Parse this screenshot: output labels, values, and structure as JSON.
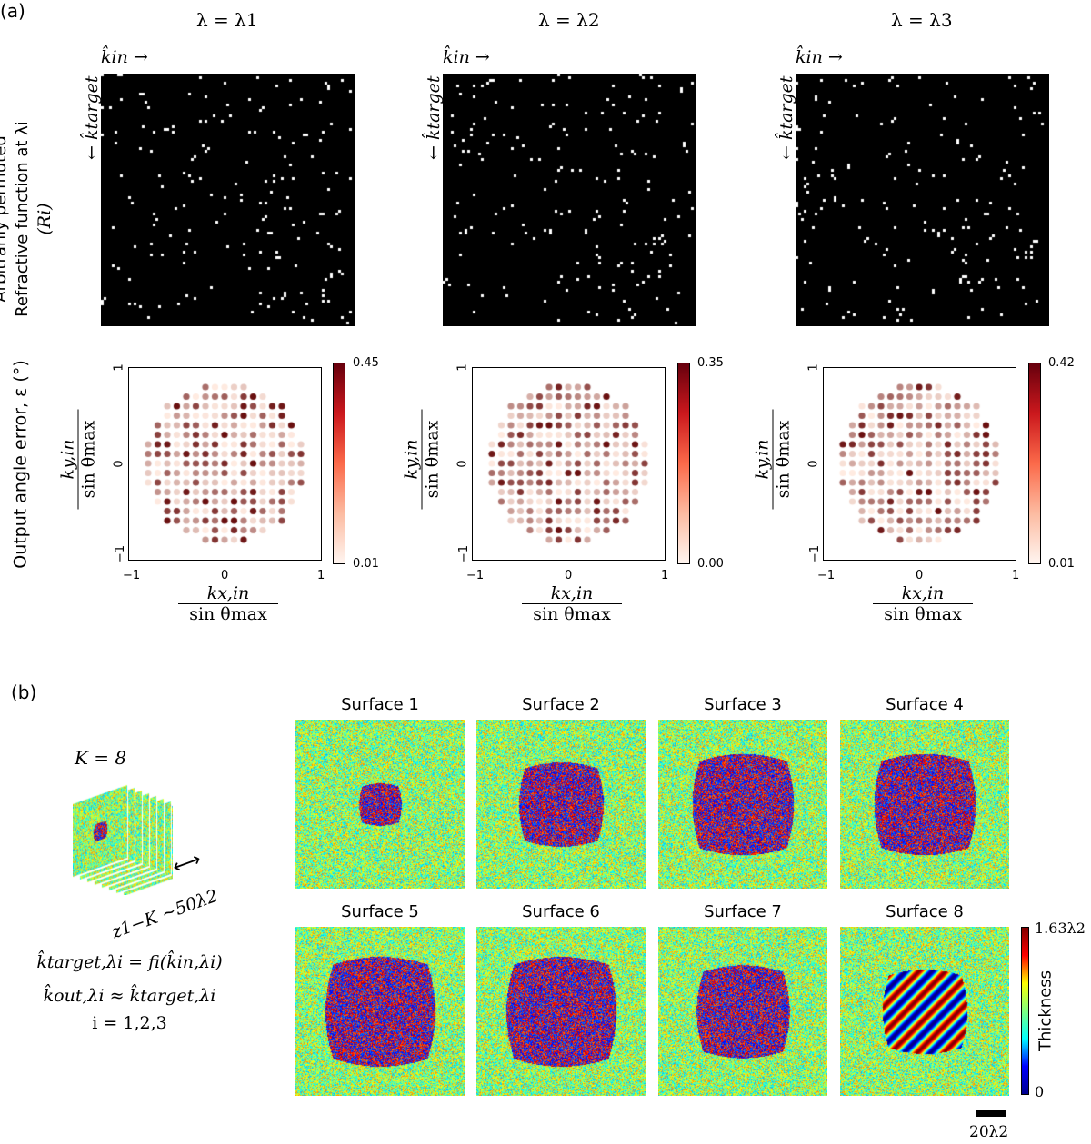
{
  "panel_a": {
    "label": "(a)",
    "columns": [
      {
        "title": "λ = λ1",
        "cbar_max": "0.45",
        "cbar_min": "0.01"
      },
      {
        "title": "λ = λ2",
        "cbar_max": "0.35",
        "cbar_min": "0.00"
      },
      {
        "title": "λ = λ3",
        "cbar_max": "0.42",
        "cbar_min": "0.01"
      }
    ],
    "kin_label": "k̂in →",
    "ktarget_label": "← k̂target",
    "row1_label_line1": "Arbitrarily permuted",
    "row1_label_line2": "Refractive function at λi",
    "row1_label_line3": "(Ri)",
    "row2_label": "Output angle error, ε (°)",
    "y_num": "ky,in",
    "y_den": "sin θmax",
    "x_num": "kx,in",
    "x_den": "sin θmax",
    "ticks": [
      "−1",
      "0",
      "1"
    ]
  },
  "panel_b": {
    "label": "(b)",
    "k_label": "K = 8",
    "z_label": "z1−K ~50λ2",
    "eq1": "k̂target,λi = fi(k̂in,λi)",
    "eq2": "k̂out,λi ≈ k̂target,λi",
    "eq3": "i = 1,2,3",
    "surfaces": [
      "Surface 1",
      "Surface 2",
      "Surface 3",
      "Surface 4",
      "Surface 5",
      "Surface 6",
      "Surface 7",
      "Surface 8"
    ],
    "cbar_max": "1.63λ2",
    "cbar_min": "0",
    "cbar_label": "Thickness",
    "scale_label": "20λ2"
  },
  "chart_data": [
    {
      "type": "scatter",
      "title": "λ = λ1",
      "xlabel": "kx,in / sin θmax",
      "ylabel": "ky,in / sin θmax",
      "xlim": [
        -1,
        1
      ],
      "ylim": [
        -1,
        1
      ],
      "colorbar": {
        "label": "Output angle error, ε (°)",
        "min": 0.01,
        "max": 0.45,
        "cmap": "Reds"
      }
    },
    {
      "type": "scatter",
      "title": "λ = λ2",
      "xlabel": "kx,in / sin θmax",
      "ylabel": "ky,in / sin θmax",
      "xlim": [
        -1,
        1
      ],
      "ylim": [
        -1,
        1
      ],
      "colorbar": {
        "min": 0.0,
        "max": 0.35,
        "cmap": "Reds"
      }
    },
    {
      "type": "scatter",
      "title": "λ = λ3",
      "xlabel": "kx,in / sin θmax",
      "ylabel": "ky,in / sin θmax",
      "xlim": [
        -1,
        1
      ],
      "ylim": [
        -1,
        1
      ],
      "colorbar": {
        "min": 0.01,
        "max": 0.42,
        "cmap": "Reds"
      }
    }
  ]
}
